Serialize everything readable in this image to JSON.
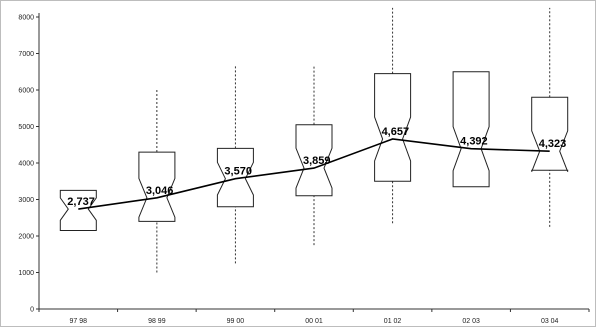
{
  "chart_data": {
    "type": "box",
    "title": "",
    "xlabel": "",
    "ylabel": "",
    "ylim": [
      0,
      8000
    ],
    "yticks": [
      0,
      1000,
      2000,
      3000,
      4000,
      5000,
      6000,
      7000,
      8000
    ],
    "grid": false,
    "legend": "none",
    "categories": [
      "97 98",
      "98 99",
      "99 00",
      "00 01",
      "01 02",
      "02 03",
      "03 04"
    ],
    "boxes": [
      {
        "category": "97 98",
        "whisker_low": 2150,
        "q1": 2150,
        "median": 2737,
        "q3": 3250,
        "whisker_high": 3250
      },
      {
        "category": "98 99",
        "whisker_low": 1000,
        "q1": 2400,
        "median": 3046,
        "q3": 4300,
        "whisker_high": 6050
      },
      {
        "category": "99 00",
        "whisker_low": 1250,
        "q1": 2800,
        "median": 3570,
        "q3": 4400,
        "whisker_high": 6650
      },
      {
        "category": "00 01",
        "whisker_low": 1750,
        "q1": 3100,
        "median": 3859,
        "q3": 5050,
        "whisker_high": 6650
      },
      {
        "category": "01 02",
        "whisker_low": 2350,
        "q1": 3500,
        "median": 4657,
        "q3": 6450,
        "whisker_high": 8250
      },
      {
        "category": "02 03",
        "whisker_low": 3350,
        "q1": 3350,
        "median": 4392,
        "q3": 6500,
        "whisker_high": 6500
      },
      {
        "category": "03 04",
        "whisker_low": 2250,
        "q1": 3800,
        "median": 4323,
        "q3": 5800,
        "whisker_high": 8250
      }
    ],
    "median_line": [
      2737,
      3046,
      3570,
      3859,
      4657,
      4392,
      4323
    ],
    "median_labels": [
      "2,737",
      "3,046",
      "3,570",
      "3,859",
      "4,657",
      "4,392",
      "4,323"
    ],
    "colors": {
      "box_stroke": "#222222",
      "line": "#000000",
      "whisker": "#333333",
      "axis": "#333333"
    }
  }
}
